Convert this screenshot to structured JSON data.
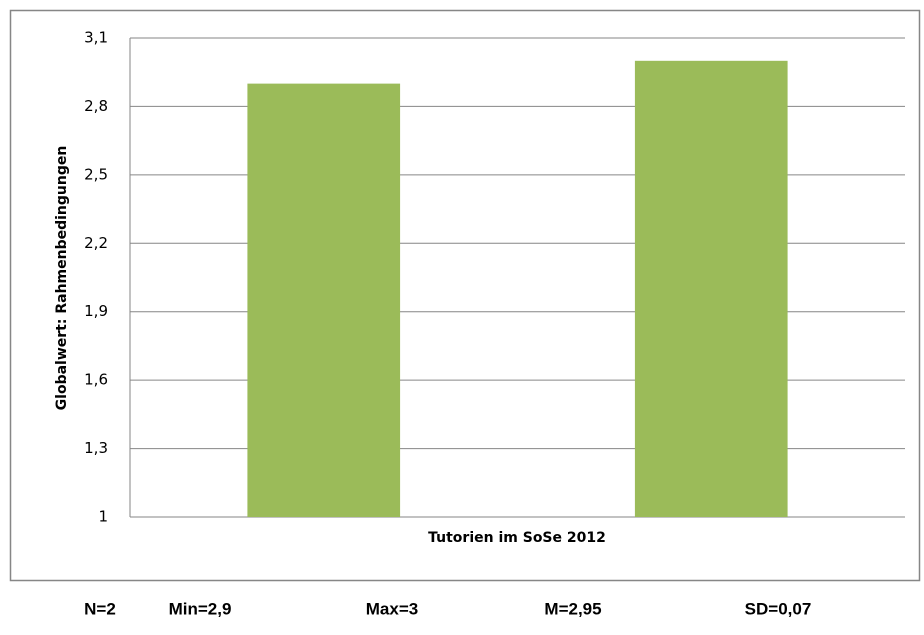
{
  "chart_data": {
    "type": "bar",
    "xlabel": "Tutorien im SoSe 2012",
    "ylabel": "Globalwert: Rahmenbedingungen",
    "categories": [
      null,
      null
    ],
    "values": [
      2.9,
      3
    ],
    "color": "#9bbb59",
    "ylim": [
      1,
      3.1
    ],
    "yticks": [
      1,
      {
        "value": 1.3,
        "label": "1,3"
      },
      {
        "value": 1.6,
        "label": "1,6"
      },
      {
        "value": 1.9,
        "label": "1,9"
      },
      {
        "value": 2.2,
        "label": "2,2"
      },
      {
        "value": 2.5,
        "label": "2,5"
      },
      {
        "value": 2.8,
        "label": "2,8"
      },
      {
        "value": 3.1,
        "label": "3,1"
      }
    ],
    "grid": true
  },
  "stats": [
    "N=2",
    "Min=2,9",
    "Max=3",
    "M=2,95",
    "SD=0,07"
  ]
}
